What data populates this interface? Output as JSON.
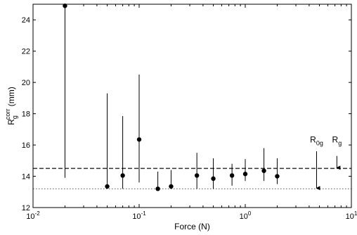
{
  "chart_data": {
    "type": "scatter",
    "xscale": "log",
    "xlim": [
      0.01,
      10
    ],
    "ylim": [
      12,
      25
    ],
    "xticks": [
      {
        "value": 0.01,
        "base": "10",
        "exp": "-2"
      },
      {
        "value": 0.1,
        "base": "10",
        "exp": "-1"
      },
      {
        "value": 1,
        "base": "10",
        "exp": "0"
      },
      {
        "value": 10,
        "base": "10",
        "exp": "1"
      }
    ],
    "yticks": [
      12,
      14,
      16,
      18,
      20,
      22,
      24
    ],
    "xlabel": "Force (N)",
    "ylabel": {
      "main": "R",
      "sub": "g",
      "sup": "corr",
      "unit": " (mm)"
    },
    "grid": false,
    "series": [
      {
        "points": [
          {
            "x": 0.02,
            "y": 24.9,
            "low": 13.9,
            "high": 24.9
          },
          {
            "x": 0.05,
            "y": 13.35,
            "low": 13.35,
            "high": 19.3
          },
          {
            "x": 0.07,
            "y": 14.05,
            "low": 13.2,
            "high": 17.85
          },
          {
            "x": 0.1,
            "y": 16.35,
            "low": 13.6,
            "high": 20.5
          },
          {
            "x": 0.15,
            "y": 13.2,
            "low": 13.2,
            "high": 14.3
          },
          {
            "x": 0.2,
            "y": 13.35,
            "low": 13.2,
            "high": 14.4
          },
          {
            "x": 0.35,
            "y": 14.05,
            "low": 13.2,
            "high": 15.5
          },
          {
            "x": 0.5,
            "y": 13.85,
            "low": 13.2,
            "high": 15.15
          },
          {
            "x": 0.75,
            "y": 14.05,
            "low": 13.4,
            "high": 14.8
          },
          {
            "x": 1.0,
            "y": 14.15,
            "low": 13.7,
            "high": 15.1
          },
          {
            "x": 1.5,
            "y": 14.35,
            "low": 13.7,
            "high": 15.8
          },
          {
            "x": 2.0,
            "y": 14.0,
            "low": 13.5,
            "high": 15.15
          }
        ]
      }
    ],
    "reference_lines": [
      {
        "y": 14.5,
        "style": "dashed"
      },
      {
        "y": 13.2,
        "style": "dotted"
      }
    ],
    "annotations": [
      {
        "main": "R",
        "sub": "0g",
        "x": 4.7,
        "y": 16.15,
        "arrow_x": 4.7,
        "arrow_from": 15.6,
        "arrow_to": 13.2
      },
      {
        "main": "R",
        "sub": "g",
        "x": 7.3,
        "y": 16.15,
        "arrow_x": 7.3,
        "arrow_from": 15.3,
        "arrow_to": 14.5
      }
    ]
  }
}
